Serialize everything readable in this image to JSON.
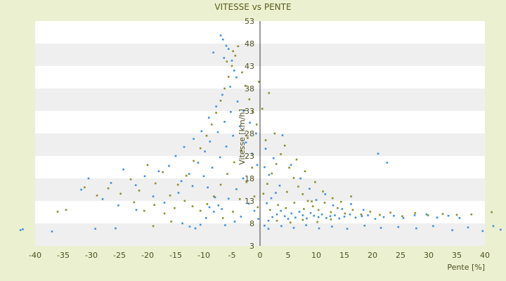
{
  "chart_data": {
    "type": "scatter",
    "title": "VITESSE vs PENTE",
    "xlabel": "Pente [%]",
    "ylabel": "Vitesse [km/h]",
    "xlim": [
      -40,
      40
    ],
    "ylim": [
      3,
      53
    ],
    "x_ticks": [
      "-40",
      "-35",
      "-30",
      "-25",
      "-20",
      "-15",
      "-10",
      "-5",
      "0",
      "5",
      "10",
      "15",
      "20",
      "25",
      "30",
      "35",
      "40"
    ],
    "y_ticks": [
      "53",
      "48",
      "43",
      "38",
      "33",
      "28",
      "23",
      "18",
      "13",
      "8",
      "3"
    ],
    "grid": "horizontal bands",
    "colors": {
      "background": "#ebf1d0",
      "plot_band_light": "#ffffff",
      "plot_band_dark": "#efefef",
      "series_blue": "#3f8fd8",
      "series_olive": "#8c8c2a"
    },
    "series": [
      {
        "points": [
          [
            -42.6,
            6.5
          ],
          [
            -42.2,
            6.7
          ],
          [
            -37,
            6.2
          ],
          [
            -29.3,
            6.8
          ],
          [
            -25.7,
            6.9
          ],
          [
            -13.8,
            8.0
          ],
          [
            -12.5,
            7.3
          ],
          [
            -11.5,
            6.9
          ],
          [
            -10.6,
            7.7
          ],
          [
            -9.6,
            9.2
          ],
          [
            -9.0,
            11.6
          ],
          [
            -8.2,
            10.6
          ],
          [
            -7.4,
            12.0
          ],
          [
            -7.0,
            49.8
          ],
          [
            -6.6,
            48.9
          ],
          [
            -6.0,
            47.5
          ],
          [
            -5.6,
            46.8
          ],
          [
            -5.0,
            44.2
          ],
          [
            -4.6,
            42.0
          ],
          [
            -6.4,
            44.8
          ],
          [
            -8.3,
            46.0
          ],
          [
            -4.2,
            40.5
          ],
          [
            -5.3,
            38.4
          ],
          [
            -6.7,
            36.6
          ],
          [
            -7.8,
            34.0
          ],
          [
            -9.1,
            31.5
          ],
          [
            -10.4,
            28.5
          ],
          [
            -11.8,
            26.8
          ],
          [
            -13.5,
            25.0
          ],
          [
            -15.0,
            23.0
          ],
          [
            -16.2,
            20.8
          ],
          [
            -18.0,
            19.6
          ],
          [
            -20.5,
            18.5
          ],
          [
            -22.1,
            16.5
          ],
          [
            -24.3,
            20.0
          ],
          [
            -26.5,
            17.0
          ],
          [
            -30.5,
            18.0
          ],
          [
            -31.8,
            15.5
          ],
          [
            -28.0,
            13.4
          ],
          [
            -25.2,
            12.0
          ],
          [
            -22.0,
            11.0
          ],
          [
            -19.0,
            14.0
          ],
          [
            -17.0,
            12.6
          ],
          [
            -14.5,
            14.8
          ],
          [
            -12.0,
            16.3
          ],
          [
            -10.0,
            18.5
          ],
          [
            -8.5,
            20.4
          ],
          [
            -7.1,
            22.7
          ],
          [
            -6.0,
            25.1
          ],
          [
            -4.8,
            27.5
          ],
          [
            -3.6,
            29.6
          ],
          [
            -2.5,
            26.0
          ],
          [
            -1.4,
            23.5
          ],
          [
            -0.5,
            21.0
          ],
          [
            -3.0,
            18.0
          ],
          [
            -4.2,
            15.6
          ],
          [
            -5.6,
            13.5
          ],
          [
            -6.8,
            11.2
          ],
          [
            -8.0,
            13.8
          ],
          [
            -9.3,
            16.0
          ],
          [
            -2.0,
            12.4
          ],
          [
            -1.0,
            10.8
          ],
          [
            -0.3,
            9.0
          ],
          [
            -3.4,
            9.5
          ],
          [
            -4.5,
            8.4
          ],
          [
            -6.2,
            7.6
          ],
          [
            0.8,
            7.5
          ],
          [
            1.5,
            8.6
          ],
          [
            2.2,
            9.4
          ],
          [
            3.0,
            10.0
          ],
          [
            3.7,
            10.8
          ],
          [
            4.4,
            9.6
          ],
          [
            5.0,
            9.0
          ],
          [
            5.6,
            10.2
          ],
          [
            6.3,
            9.3
          ],
          [
            7.0,
            10.6
          ],
          [
            7.6,
            9.8
          ],
          [
            8.3,
            9.1
          ],
          [
            9.0,
            10.3
          ],
          [
            9.6,
            9.7
          ],
          [
            10.4,
            9.4
          ],
          [
            11.0,
            10.0
          ],
          [
            11.8,
            9.2
          ],
          [
            12.5,
            9.6
          ],
          [
            13.3,
            9.8
          ],
          [
            14.1,
            9.1
          ],
          [
            15.0,
            9.5
          ],
          [
            16.0,
            10.0
          ],
          [
            17.0,
            9.3
          ],
          [
            18.1,
            9.6
          ],
          [
            19.2,
            9.8
          ],
          [
            20.5,
            9.0
          ],
          [
            22.0,
            9.4
          ],
          [
            23.8,
            9.7
          ],
          [
            25.5,
            9.2
          ],
          [
            27.5,
            9.8
          ],
          [
            29.6,
            10.0
          ],
          [
            31.5,
            9.3
          ],
          [
            33.5,
            9.7
          ],
          [
            35.5,
            9.2
          ],
          [
            1.2,
            12.5
          ],
          [
            2.0,
            13.6
          ],
          [
            2.8,
            14.8
          ],
          [
            3.5,
            16.4
          ],
          [
            1.6,
            18.8
          ],
          [
            0.8,
            20.5
          ],
          [
            2.4,
            22.5
          ],
          [
            1.0,
            24.6
          ],
          [
            4.0,
            27.6
          ],
          [
            5.5,
            21.0
          ],
          [
            7.2,
            18.0
          ],
          [
            8.8,
            15.7
          ],
          [
            10.0,
            13.2
          ],
          [
            11.6,
            14.5
          ],
          [
            13.0,
            12.0
          ],
          [
            14.6,
            11.2
          ],
          [
            16.2,
            12.3
          ],
          [
            18.4,
            11.0
          ],
          [
            21.0,
            23.5
          ],
          [
            22.6,
            21.5
          ],
          [
            1.5,
            6.8
          ],
          [
            3.8,
            7.4
          ],
          [
            6.0,
            7.0
          ],
          [
            8.2,
            7.6
          ],
          [
            10.5,
            6.9
          ],
          [
            12.8,
            7.3
          ],
          [
            15.5,
            6.8
          ],
          [
            18.6,
            7.5
          ],
          [
            21.5,
            7.0
          ],
          [
            24.6,
            7.2
          ],
          [
            27.8,
            6.9
          ],
          [
            30.8,
            7.4
          ],
          [
            34.2,
            6.5
          ],
          [
            37.0,
            7.1
          ],
          [
            39.6,
            6.3
          ],
          [
            41.5,
            7.4
          ],
          [
            42.8,
            6.6
          ],
          [
            -11.0,
            21.5
          ],
          [
            -12.6,
            19.0
          ],
          [
            -14.0,
            17.4
          ],
          [
            -9.8,
            24.0
          ],
          [
            -8.9,
            26.2
          ],
          [
            -7.5,
            28.3
          ],
          [
            -6.3,
            30.6
          ],
          [
            -5.2,
            32.8
          ],
          [
            -4.0,
            35.1
          ],
          [
            -2.9,
            33.0
          ],
          [
            -1.8,
            30.4
          ],
          [
            -0.7,
            28.0
          ]
        ]
      },
      {
        "points": [
          [
            -36.0,
            10.6
          ],
          [
            -34.5,
            11.0
          ],
          [
            -31.2,
            16.0
          ],
          [
            -29.0,
            14.2
          ],
          [
            -27.0,
            15.8
          ],
          [
            -24.8,
            14.6
          ],
          [
            -23.0,
            17.8
          ],
          [
            -21.5,
            15.3
          ],
          [
            -20.0,
            21.0
          ],
          [
            -18.6,
            16.9
          ],
          [
            -17.3,
            19.4
          ],
          [
            -16.0,
            14.2
          ],
          [
            -14.6,
            16.6
          ],
          [
            -13.1,
            18.6
          ],
          [
            -11.8,
            21.9
          ],
          [
            -10.6,
            24.7
          ],
          [
            -9.5,
            27.5
          ],
          [
            -8.6,
            30.0
          ],
          [
            -7.8,
            32.6
          ],
          [
            -7.0,
            35.3
          ],
          [
            -6.3,
            38.0
          ],
          [
            -5.6,
            40.6
          ],
          [
            -5.0,
            43.0
          ],
          [
            -4.4,
            45.3
          ],
          [
            -3.9,
            47.4
          ],
          [
            -4.8,
            46.3
          ],
          [
            -5.9,
            44.0
          ],
          [
            -3.2,
            41.6
          ],
          [
            -2.6,
            38.6
          ],
          [
            -1.9,
            35.6
          ],
          [
            -1.3,
            32.8
          ],
          [
            -0.6,
            30.0
          ],
          [
            -0.2,
            39.5
          ],
          [
            -2.2,
            27.0
          ],
          [
            -3.4,
            24.2
          ],
          [
            -4.6,
            21.6
          ],
          [
            -5.8,
            19.0
          ],
          [
            -7.0,
            16.6
          ],
          [
            -8.2,
            14.0
          ],
          [
            -9.4,
            12.3
          ],
          [
            -10.6,
            10.8
          ],
          [
            -12.0,
            11.8
          ],
          [
            -13.4,
            13.0
          ],
          [
            -15.2,
            11.4
          ],
          [
            -17.0,
            10.2
          ],
          [
            -18.8,
            12.1
          ],
          [
            -20.6,
            10.8
          ],
          [
            -22.4,
            12.7
          ],
          [
            -19.0,
            7.4
          ],
          [
            -15.8,
            8.4
          ],
          [
            0.6,
            14.6
          ],
          [
            1.3,
            16.8
          ],
          [
            2.1,
            19.1
          ],
          [
            2.9,
            21.2
          ],
          [
            3.7,
            23.4
          ],
          [
            4.4,
            25.3
          ],
          [
            5.2,
            20.4
          ],
          [
            6.0,
            18.1
          ],
          [
            6.8,
            16.2
          ],
          [
            7.6,
            14.5
          ],
          [
            8.5,
            13.0
          ],
          [
            9.4,
            11.8
          ],
          [
            10.4,
            11.0
          ],
          [
            11.5,
            12.6
          ],
          [
            12.6,
            10.5
          ],
          [
            13.8,
            11.4
          ],
          [
            15.1,
            10.2
          ],
          [
            16.5,
            11.0
          ],
          [
            18.0,
            10.0
          ],
          [
            19.6,
            10.6
          ],
          [
            21.3,
            9.9
          ],
          [
            23.2,
            10.4
          ],
          [
            25.3,
            9.6
          ],
          [
            27.6,
            10.3
          ],
          [
            29.9,
            9.8
          ],
          [
            32.5,
            10.1
          ],
          [
            35.0,
            9.9
          ],
          [
            37.6,
            10.0
          ],
          [
            41.2,
            10.5
          ],
          [
            1.8,
            11.0
          ],
          [
            3.2,
            12.1
          ],
          [
            4.6,
            11.4
          ],
          [
            6.1,
            12.6
          ],
          [
            7.8,
            11.2
          ],
          [
            9.2,
            12.9
          ],
          [
            1.0,
            26.5
          ],
          [
            2.6,
            28.0
          ],
          [
            0.4,
            33.5
          ],
          [
            1.6,
            37.0
          ],
          [
            4.8,
            15.0
          ],
          [
            6.5,
            22.2
          ],
          [
            8.0,
            19.6
          ],
          [
            9.8,
            17.2
          ],
          [
            11.2,
            15.1
          ],
          [
            12.9,
            13.6
          ],
          [
            14.4,
            12.8
          ],
          [
            16.2,
            14.0
          ],
          [
            3.0,
            8.6
          ],
          [
            5.4,
            8.2
          ],
          [
            7.6,
            8.8
          ],
          [
            10.2,
            8.3
          ],
          [
            12.6,
            8.9
          ],
          [
            -1.4,
            20.4
          ],
          [
            -2.4,
            17.2
          ],
          [
            -3.6,
            13.4
          ],
          [
            -4.8,
            10.6
          ],
          [
            -6.6,
            9.2
          ],
          [
            -1.0,
            14.0
          ],
          [
            -0.4,
            11.6
          ]
        ]
      }
    ]
  }
}
